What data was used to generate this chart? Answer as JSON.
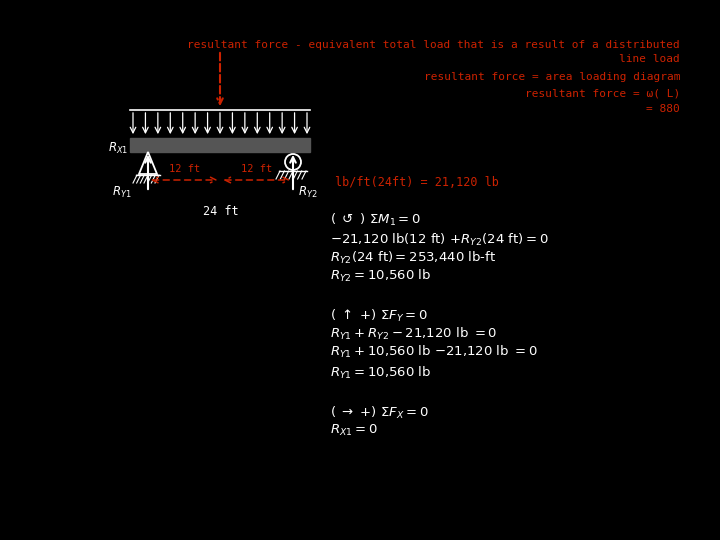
{
  "bg_color": "#000000",
  "white": "#ffffff",
  "red": "#cc2200",
  "fig_w": 7.2,
  "fig_h": 5.4,
  "dpi": 100,
  "title_line1": "resultant force - equivalent total load that is a result of a distributed",
  "title_line2": "line load",
  "rf_area": "resultant force = area loading diagram",
  "rf_omega": "resultant force = ω( L)",
  "eq_880": "= 880",
  "lb_ft_label": "lb/ft(24ft) = 21,120 lb"
}
